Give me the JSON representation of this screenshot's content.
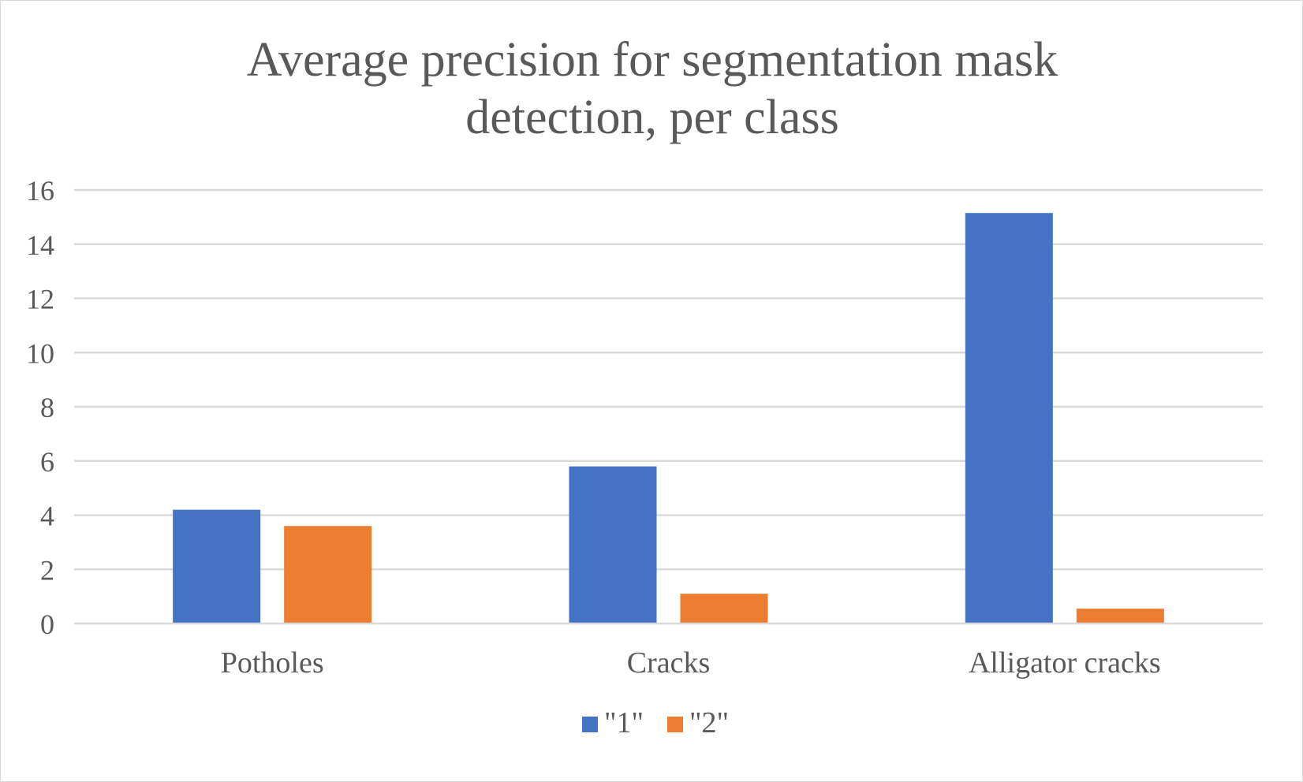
{
  "chart_data": {
    "type": "bar",
    "title_lines": [
      "Average precision for segmentation mask",
      "detection, per class"
    ],
    "categories": [
      "Potholes",
      "Cracks",
      "Alligator cracks"
    ],
    "series": [
      {
        "name": "\"1\"",
        "color": "#4472c4",
        "values": [
          4.2,
          5.8,
          15.15
        ]
      },
      {
        "name": "\"2\"",
        "color": "#ed7d31",
        "values": [
          3.6,
          1.1,
          0.55
        ]
      }
    ],
    "ylim": [
      0,
      16
    ],
    "yticks": [
      0,
      2,
      4,
      6,
      8,
      10,
      12,
      14,
      16
    ],
    "grid": true,
    "legend_position": "bottom"
  }
}
